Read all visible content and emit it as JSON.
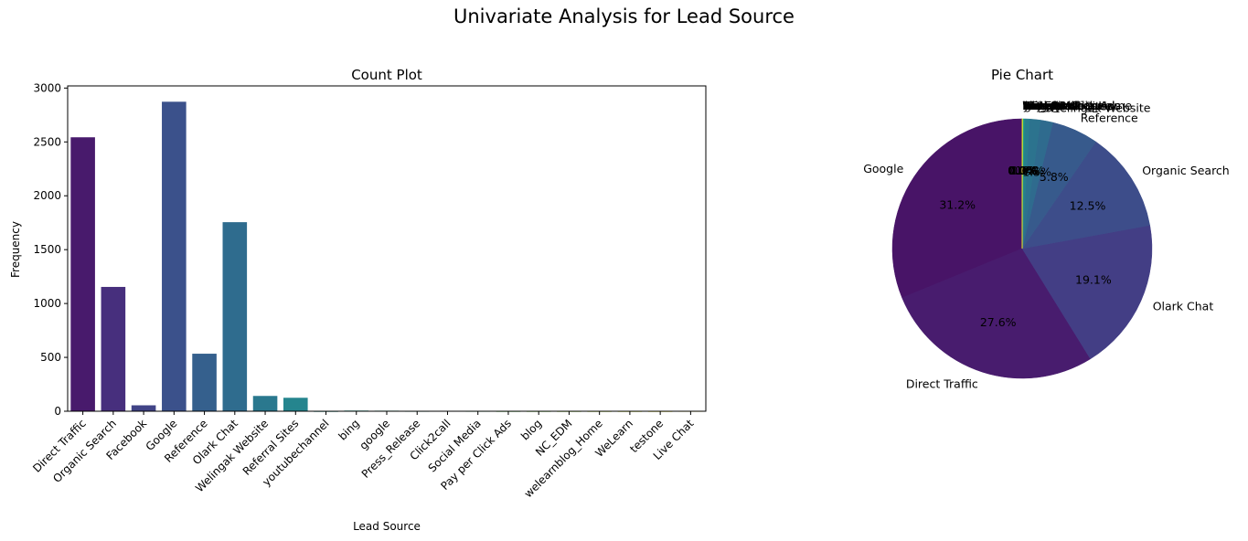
{
  "figure": {
    "suptitle": "Univariate Analysis for Lead Source"
  },
  "chart_data": [
    {
      "type": "bar",
      "title": "Count Plot",
      "xlabel": "Lead Source",
      "ylabel": "Frequency",
      "ylim": [
        0,
        3020
      ],
      "yticks": [
        0,
        500,
        1000,
        1500,
        2000,
        2500,
        3000
      ],
      "grid": false,
      "categories": [
        "Direct Traffic",
        "Organic Search",
        "Facebook",
        "Google",
        "Reference",
        "Olark Chat",
        "Welingak Website",
        "Referral Sites",
        "youtubechannel",
        "bing",
        "google",
        "Press_Release",
        "Click2call",
        "Social Media",
        "Pay per Click Ads",
        "blog",
        "NC_EDM",
        "welearnblog_Home",
        "WeLearn",
        "testone",
        "Live Chat"
      ],
      "values": [
        2543,
        1154,
        55,
        2873,
        534,
        1755,
        142,
        125,
        1,
        6,
        5,
        2,
        4,
        2,
        1,
        1,
        1,
        1,
        1,
        1,
        2
      ],
      "colors": [
        "#481a6c",
        "#472f7d",
        "#414487",
        "#3b518b",
        "#35608d",
        "#2f6c8e",
        "#2a788e",
        "#25858e",
        "#21918c",
        "#1e9c89",
        "#21a685",
        "#2db27d",
        "#3bbb75",
        "#4fc46a",
        "#65cb5e",
        "#7fd34e",
        "#98d83e",
        "#b2dd2d",
        "#cde11d",
        "#e5e419",
        "#fde725"
      ]
    },
    {
      "type": "pie",
      "title": "Pie Chart",
      "start_angle_deg": 90,
      "direction": "counterclockwise",
      "slices": [
        {
          "label": "Google",
          "value": 2873,
          "pct_label": "31.2%",
          "color": "#481467"
        },
        {
          "label": "Direct Traffic",
          "value": 2543,
          "pct_label": "27.6%",
          "color": "#481c6e"
        },
        {
          "label": "Olark Chat",
          "value": 1755,
          "pct_label": "19.1%",
          "color": "#433e85"
        },
        {
          "label": "Organic Search",
          "value": 1154,
          "pct_label": "12.5%",
          "color": "#3d4d8a"
        },
        {
          "label": "Reference",
          "value": 534,
          "pct_label": "5.8%",
          "color": "#375a8c"
        },
        {
          "label": "Welingak Website",
          "value": 142,
          "pct_label": "1.5%",
          "color": "#2f6b8e"
        },
        {
          "label": "Referral Sites",
          "value": 125,
          "pct_label": "1.4%",
          "color": "#2c738e"
        },
        {
          "label": "Facebook",
          "value": 55,
          "pct_label": "0.6%",
          "color": "#277f8e"
        },
        {
          "label": "bing",
          "value": 6,
          "pct_label": "0.1%",
          "color": "#23898e"
        },
        {
          "label": "google",
          "value": 5,
          "pct_label": "0.1%",
          "color": "#21918c"
        },
        {
          "label": "Click2call",
          "value": 4,
          "pct_label": "0.0%",
          "color": "#1f9a8a"
        },
        {
          "label": "Press_Release",
          "value": 2,
          "pct_label": "0.0%",
          "color": "#20a386"
        },
        {
          "label": "Social Media",
          "value": 2,
          "pct_label": "0.0%",
          "color": "#26ad81"
        },
        {
          "label": "Live Chat",
          "value": 2,
          "pct_label": "0.0%",
          "color": "#35b779"
        },
        {
          "label": "youtubechannel",
          "value": 1,
          "pct_label": "0.0%",
          "color": "#4ac16d"
        },
        {
          "label": "testone",
          "value": 1,
          "pct_label": "0.0%",
          "color": "#63cb5f"
        },
        {
          "label": "Pay per Click Ads",
          "value": 1,
          "pct_label": "0.0%",
          "color": "#84d44b"
        },
        {
          "label": "welearnblog_Home",
          "value": 1,
          "pct_label": "0.0%",
          "color": "#a8db34"
        },
        {
          "label": "WeLearn",
          "value": 1,
          "pct_label": "0.0%",
          "color": "#cde11d"
        },
        {
          "label": "blog",
          "value": 1,
          "pct_label": "0.0%",
          "color": "#e5e419"
        },
        {
          "label": "NC_EDM",
          "value": 1,
          "pct_label": "0.0%",
          "color": "#fde725"
        }
      ]
    }
  ]
}
